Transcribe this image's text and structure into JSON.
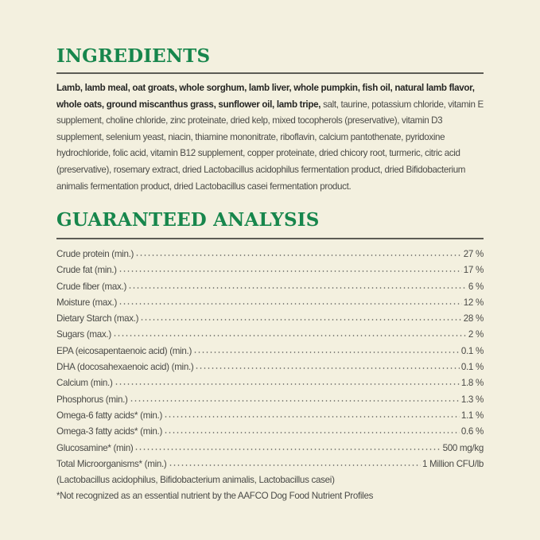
{
  "ingredients": {
    "title": "INGREDIENTS",
    "bold_text": "Lamb, lamb meal, oat groats, whole sorghum, lamb liver, whole pumpkin, fish oil, natural lamb flavor, whole oats, ground miscanthus grass, sunflower oil, lamb tripe,",
    "regular_text": " salt, taurine, potassium chloride, vitamin E supplement, choline chloride, zinc proteinate, dried kelp, mixed tocopherols (preservative), vitamin D3 supplement, selenium yeast, niacin, thiamine mononitrate, riboflavin, calcium pantothenate, pyridoxine hydrochloride, folic acid, vitamin B12 supplement, copper proteinate, dried chicory root, turmeric, citric acid (preservative), rosemary extract, dried Lactobacillus acidophilus fermentation product, dried Bifidobacterium animalis fermentation product, dried Lactobacillus casei fermentation product."
  },
  "analysis": {
    "title": "GUARANTEED ANALYSIS",
    "rows": [
      {
        "label": "Crude protein (min.)",
        "value": "27 %"
      },
      {
        "label": "Crude fat (min.)",
        "value": "17 %"
      },
      {
        "label": "Crude fiber (max.)",
        "value": "6 %"
      },
      {
        "label": "Moisture (max.)",
        "value": "12 %"
      },
      {
        "label": "Dietary Starch (max.)",
        "value": "28 %"
      },
      {
        "label": "Sugars (max.)",
        "value": "2 %"
      },
      {
        "label": "EPA (eicosapentaenoic acid) (min.)",
        "value": "0.1 %"
      },
      {
        "label": "DHA (docosahexaenoic acid) (min.)",
        "value": "0.1 %"
      },
      {
        "label": "Calcium (min.)",
        "value": "1.8 %"
      },
      {
        "label": "Phosphorus (min.)",
        "value": "1.3 %"
      },
      {
        "label": "Omega-6 fatty acids* (min.)",
        "value": "1.1 %"
      },
      {
        "label": "Omega-3 fatty acids* (min.)",
        "value": "0.6 %"
      },
      {
        "label": "Glucosamine* (min)",
        "value": "500 mg/kg"
      },
      {
        "label": "Total Microorganisms* (min.)",
        "value": "1 Million CFU/lb"
      }
    ],
    "microorganisms_note": "(Lactobacillus acidophilus, Bifidobacterium animalis, Lactobacillus casei)",
    "footnote": "*Not recognized as an essential nutrient by the AAFCO Dog Food Nutrient Profiles"
  },
  "colors": {
    "heading": "#17864c",
    "background": "#f3f0df",
    "rule": "#5c5c55"
  }
}
